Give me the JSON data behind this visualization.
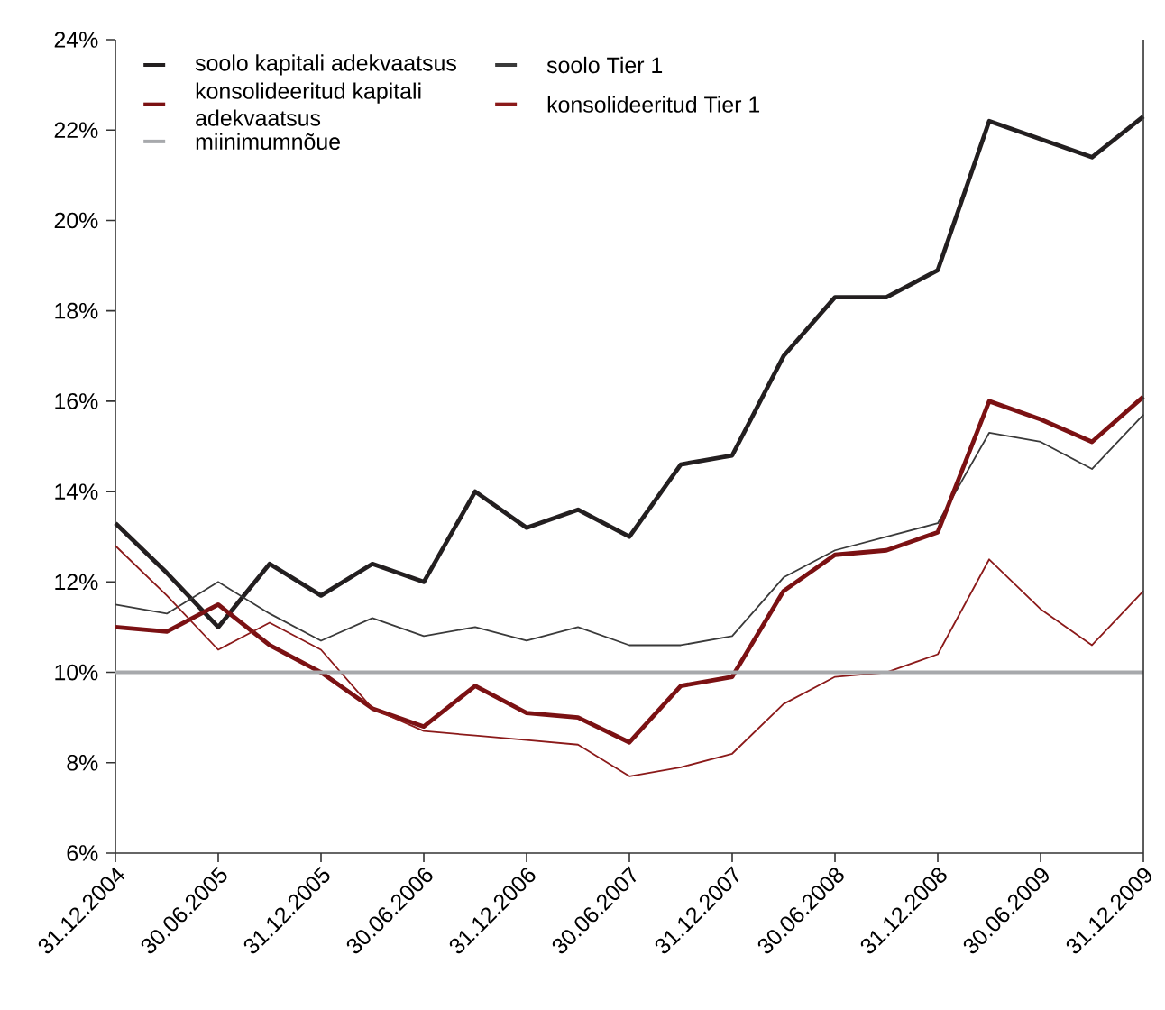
{
  "chart_data": {
    "type": "line",
    "categories": [
      "31.12.2004",
      null,
      "30.06.2005",
      null,
      "31.12.2005",
      null,
      "30.06.2006",
      null,
      "31.12.2006",
      null,
      "30.06.2007",
      null,
      "31.12.2007",
      null,
      "30.06.2008",
      null,
      "31.12.2008",
      null,
      "30.06.2009",
      null,
      "31.12.2009"
    ],
    "series": [
      {
        "name": "soolo kapitali adekvaatsus",
        "color": "#231f20",
        "values": [
          13.3,
          12.2,
          11.0,
          12.4,
          11.7,
          12.4,
          12.0,
          14.0,
          13.2,
          13.6,
          13.0,
          14.6,
          14.8,
          17.0,
          18.3,
          18.3,
          18.9,
          22.2,
          21.8,
          21.4,
          22.3
        ]
      },
      {
        "name": "konsolideeritud kapitali adekvaatsus",
        "color": "#7b1113",
        "values": [
          11.0,
          10.9,
          11.5,
          10.6,
          10.0,
          9.2,
          8.8,
          9.7,
          9.1,
          9.0,
          8.45,
          9.7,
          9.9,
          11.8,
          12.6,
          12.7,
          13.1,
          16.0,
          15.6,
          15.1,
          16.1
        ]
      },
      {
        "name": "soolo Tier 1",
        "color": "#3a3a3a",
        "values": [
          11.5,
          11.3,
          12.0,
          11.3,
          10.7,
          11.2,
          10.8,
          11.0,
          10.7,
          11.0,
          10.6,
          10.6,
          10.8,
          12.1,
          12.7,
          13.0,
          13.3,
          15.3,
          15.1,
          14.5,
          15.7
        ]
      },
      {
        "name": "konsolideeritud Tier 1",
        "color": "#8b1a1a",
        "values": [
          12.8,
          11.7,
          10.5,
          11.1,
          10.5,
          9.2,
          8.7,
          8.6,
          8.5,
          8.4,
          7.7,
          7.9,
          8.2,
          9.3,
          9.9,
          10.0,
          10.4,
          12.5,
          11.4,
          10.6,
          11.8
        ]
      }
    ],
    "ylim": [
      6,
      24
    ],
    "yticks": [
      {
        "value": 6,
        "label": "6%"
      },
      {
        "value": 8,
        "label": "8%"
      },
      {
        "value": 10,
        "label": "10%"
      },
      {
        "value": 12,
        "label": "12%"
      },
      {
        "value": 14,
        "label": "14%"
      },
      {
        "value": 16,
        "label": "16%"
      },
      {
        "value": 18,
        "label": "18%"
      },
      {
        "value": 20,
        "label": "20%"
      },
      {
        "value": 22,
        "label": "22%"
      },
      {
        "value": 24,
        "label": "24%"
      }
    ],
    "ref_lines": [
      {
        "axis": "y",
        "value": 10,
        "label": "miinimumnõue",
        "color": "#a7a9ac"
      }
    ],
    "grid": false,
    "legend": "top left",
    "marker": "none",
    "line_style": "solid"
  }
}
